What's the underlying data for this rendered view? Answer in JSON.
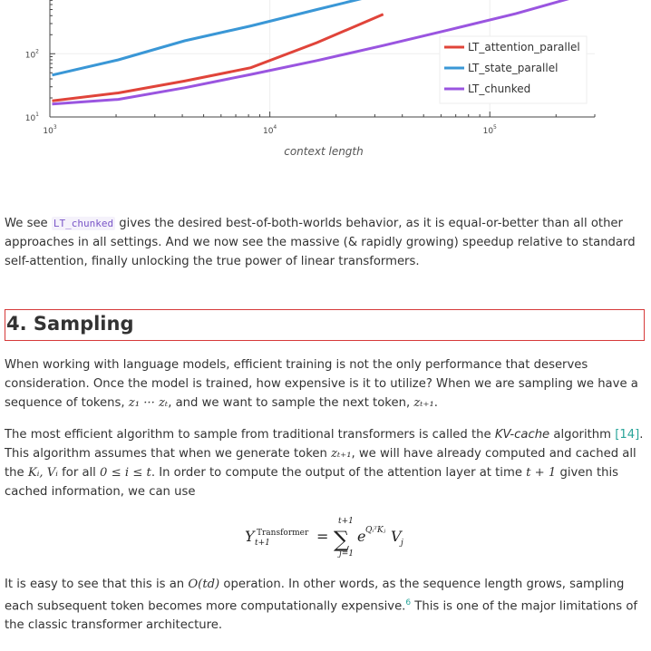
{
  "chart_data": {
    "type": "line",
    "xlabel": "context length",
    "xscale": "log",
    "yscale": "log",
    "x_ticks": [
      "10^3",
      "10^4",
      "10^5"
    ],
    "y_ticks": [
      "10^1",
      "10^2"
    ],
    "series": [
      {
        "name": "LT_attention_parallel",
        "color": "#e0443a",
        "x": [
          1024,
          2048,
          4096,
          8192,
          16384,
          32768
        ],
        "y": [
          18,
          24,
          37,
          60,
          150,
          420
        ]
      },
      {
        "name": "LT_state_parallel",
        "color": "#3a97d6",
        "x": [
          1024,
          2048,
          4096,
          8192,
          16384,
          32768
        ],
        "y": [
          46,
          80,
          160,
          275,
          500,
          900
        ]
      },
      {
        "name": "LT_chunked",
        "color": "#9a55e0",
        "x": [
          1024,
          2048,
          4096,
          8192,
          16384,
          32768,
          65536,
          131072,
          262144
        ],
        "y": [
          16,
          19,
          29,
          47,
          78,
          135,
          240,
          430,
          850
        ]
      }
    ],
    "legend": "right",
    "grid": true
  },
  "texts": {
    "p1_before": "We see ",
    "p1_code": "LT_chunked",
    "p1_after": " gives the desired best-of-both-worlds behavior, as it is equal-or-better than all other approaches in all settings. And we now see the massive (& rapidly growing) speedup relative to standard self-attention, finally unlocking the true power of linear transformers.",
    "section_heading": "4. Sampling",
    "p2_a": "When working with language models, efficient training is not the only performance that deserves consideration. Once the model is trained, how expensive is it to utilize? When we are sampling we have a sequence of tokens, ",
    "p2_seq": "z₁ ··· zₜ",
    "p2_b": ", and we want to sample the next token, ",
    "p2_next": "zₜ₊₁",
    "p2_c": ".",
    "p3_a": "The most efficient algorithm to sample from traditional transformers is called the ",
    "p3_kv": "KV-cache",
    "p3_b": " algorithm ",
    "p3_cite": "[14]",
    "p3_c": ". This algorithm assumes that when we generate token ",
    "p3_tok": "zₜ₊₁",
    "p3_d": ", we will have already computed and cached all the ",
    "p3_kv_vars": "Kᵢ, Vᵢ",
    "p3_e": " for all ",
    "p3_range": "0 ≤ i ≤ t",
    "p3_f": ". In order to compute the output of the attention layer at time ",
    "p3_time": "t + 1",
    "p3_g": " given this cached information, we can use",
    "p4_a": "It is easy to see that this is an ",
    "p4_o": "O(td)",
    "p4_b": " operation. In other words, as the sequence length grows, sampling each subsequent token becomes more computationally expensive.",
    "p4_fn": "6",
    "p4_c": " This is one of the major limitations of the classic transformer architecture."
  }
}
